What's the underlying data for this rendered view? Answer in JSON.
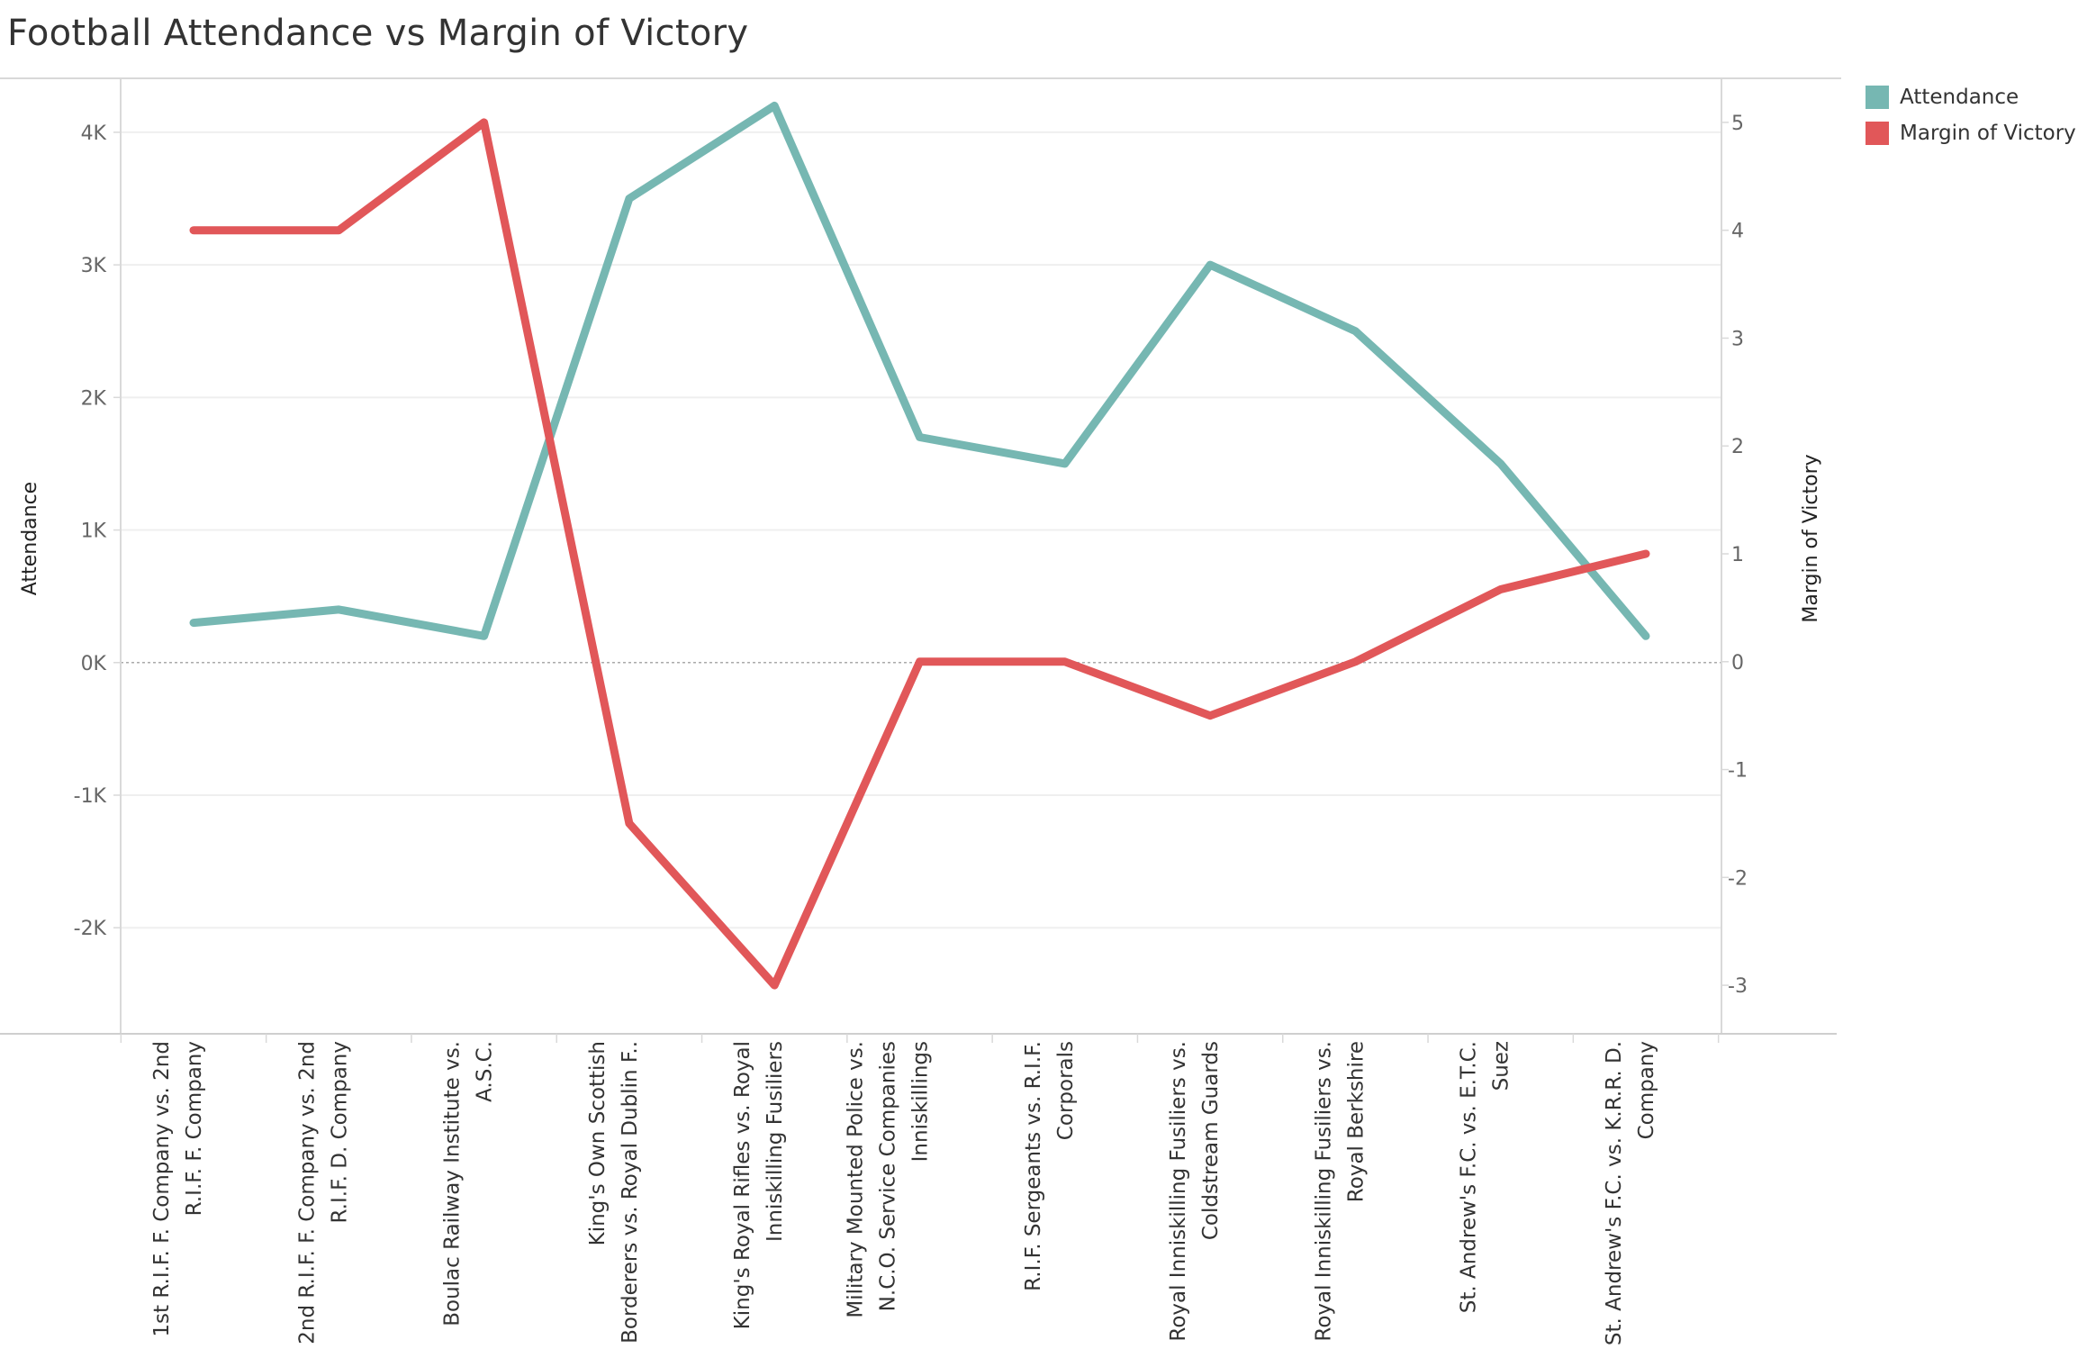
{
  "chart_data": {
    "type": "line",
    "title": "Football Attendance vs Margin of Victory",
    "categories": [
      "1st R.I.F. F. Company vs. 2nd R.I.F. F. Company",
      "2nd R.I.F. F. Company vs. 2nd R.I.F. D. Company",
      "Boulac Railway Institute vs. A.S.C.",
      "King's Own Scottish Borderers vs. Royal Dublin F..",
      "King's Royal Rifles vs. Royal Inniskilling Fusiliers",
      "Military Mounted Police vs. N.C.O. Service Companies Inniskillings",
      "R.I.F. Sergeants vs. R.I.F. Corporals",
      "Royal Inniskilling Fusiliers vs. Coldstream Guards",
      "Royal Inniskilling Fusiliers vs. Royal Berkshire",
      "St. Andrew's F.C. vs. E.T.C. Suez",
      "St. Andrew's F.C. vs. K.R.R. D. Company"
    ],
    "category_label_lines": [
      [
        "1st R.I.F. F. Company vs. 2nd",
        "R.I.F. F. Company"
      ],
      [
        "2nd R.I.F. F. Company vs. 2nd",
        "R.I.F. D. Company"
      ],
      [
        "Boulac Railway Institute vs.",
        "A.S.C."
      ],
      [
        "King's Own Scottish",
        "Borderers vs. Royal Dublin F.."
      ],
      [
        "King's Royal Rifles vs. Royal",
        "Inniskilling Fusiliers"
      ],
      [
        "Military Mounted Police vs.",
        "N.C.O. Service Companies",
        "Inniskillings"
      ],
      [
        "R.I.F. Sergeants vs. R.I.F.",
        "Corporals"
      ],
      [
        "Royal Inniskilling Fusiliers vs.",
        "Coldstream Guards"
      ],
      [
        "Royal Inniskilling Fusiliers vs.",
        "Royal Berkshire"
      ],
      [
        "St. Andrew's F.C. vs. E.T.C.",
        "Suez"
      ],
      [
        "St. Andrew's F.C. vs. K.R.R. D.",
        "Company"
      ]
    ],
    "series": [
      {
        "name": "Attendance",
        "axis": "left",
        "color": "#76b7b2",
        "values": [
          300,
          400,
          200,
          3500,
          4200,
          1700,
          1500,
          3000,
          2500,
          1500,
          200
        ]
      },
      {
        "name": "Margin of Victory",
        "axis": "right",
        "color": "#e15759",
        "values": [
          4,
          4,
          5,
          -1.5,
          -3,
          0,
          0,
          -0.5,
          0,
          0.67,
          1
        ]
      }
    ],
    "ylabel": "Attendance",
    "y2label": "Margin of Victory",
    "ylim": [
      -2800,
      4400
    ],
    "y2lim": [
      -3.45,
      5.4
    ],
    "yticks": [
      -2000,
      -1000,
      0,
      1000,
      2000,
      3000,
      4000
    ],
    "ytick_labels": [
      "-2K",
      "-1K",
      "0K",
      "1K",
      "2K",
      "3K",
      "4K"
    ],
    "y2ticks": [
      -3,
      -2,
      -1,
      0,
      1,
      2,
      3,
      4,
      5
    ],
    "y2tick_labels": [
      "-3",
      "-2",
      "-1",
      "0",
      "1",
      "2",
      "3",
      "4",
      "5"
    ],
    "grid": true,
    "legend_position": "top-right"
  }
}
